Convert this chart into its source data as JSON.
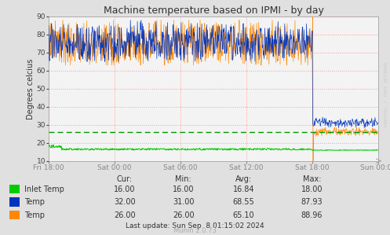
{
  "title": "Machine temperature based on IPMI - by day",
  "ylabel": "Degrees celcius",
  "background_color": "#e0e0e0",
  "plot_bg_color": "#f3f3f3",
  "grid_color": "#ff9999",
  "grid_ls": ":",
  "ylim": [
    10,
    90
  ],
  "yticks": [
    10,
    20,
    30,
    40,
    50,
    60,
    70,
    80,
    90
  ],
  "xtick_labels": [
    "Fri 18:00",
    "Sat 00:00",
    "Sat 06:00",
    "Sat 12:00",
    "Sat 18:00",
    "Sun 00:00"
  ],
  "n_points": 800,
  "inlet_color": "#00cc00",
  "temp_blue_color": "#0033bb",
  "temp_orange_color": "#ff8800",
  "dashed_green_color": "#009900",
  "watermark": "RRDTOOL / TOBI OETIKER",
  "munin_version": "Munin 2.0.73",
  "legend": [
    {
      "label": "Inlet Temp",
      "color": "#00cc00",
      "cur": "16.00",
      "min": "16.00",
      "avg": "16.84",
      "max": "18.00"
    },
    {
      "label": "Temp",
      "color": "#0033bb",
      "cur": "32.00",
      "min": "31.00",
      "avg": "68.55",
      "max": "87.93"
    },
    {
      "label": "Temp",
      "color": "#ff8800",
      "cur": "26.00",
      "min": "26.00",
      "avg": "65.10",
      "max": "88.96"
    }
  ],
  "last_update": "Last update: Sun Sep  8 01:15:02 2024"
}
